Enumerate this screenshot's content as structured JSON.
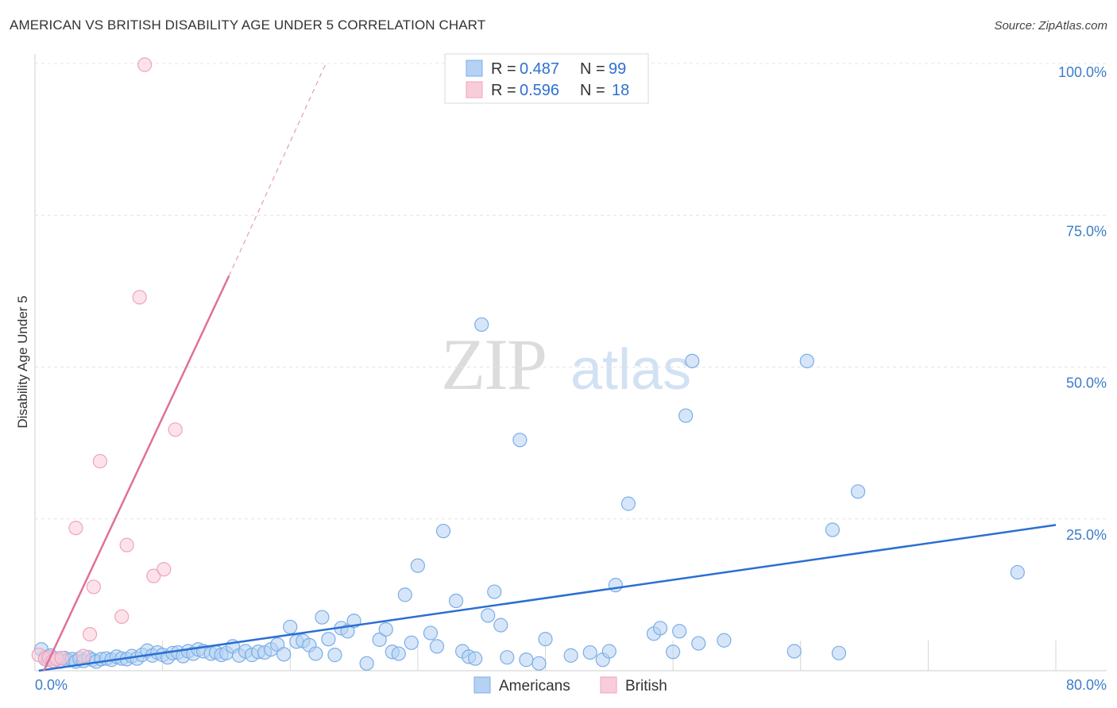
{
  "title": "AMERICAN VS BRITISH DISABILITY AGE UNDER 5 CORRELATION CHART",
  "source": "Source: ZipAtlas.com",
  "watermark": {
    "zip": "ZIP",
    "atlas": "atlas"
  },
  "chart_data": {
    "type": "scatter",
    "title": "AMERICAN VS BRITISH DISABILITY AGE UNDER 5 CORRELATION CHART",
    "xlabel": "",
    "ylabel": "Disability Age Under 5",
    "xlim": [
      0,
      80
    ],
    "ylim": [
      0,
      100
    ],
    "x_tick_labels": {
      "min": "0.0%",
      "max": "80.0%"
    },
    "y_ticks": [
      {
        "value": 100,
        "label": "100.0%"
      },
      {
        "value": 75,
        "label": "75.0%"
      },
      {
        "value": 50,
        "label": "50.0%"
      },
      {
        "value": 25,
        "label": "25.0%"
      }
    ],
    "legend": {
      "position": "top-center",
      "items": [
        {
          "series": "Americans",
          "r_label": "R =",
          "r_value": "0.487",
          "n_label": "N =",
          "n_value": "99"
        },
        {
          "series": "British",
          "r_label": "R =",
          "r_value": "0.596",
          "n_label": "N =",
          "n_value": "18"
        }
      ]
    },
    "series": [
      {
        "name": "Americans",
        "color": "#7aaee8",
        "fill": "#b5d1f3",
        "line_color": "#2b6fd1",
        "trend": {
          "x0": 0.3,
          "y0": 0,
          "x1": 80,
          "y1": 24
        },
        "points": [
          [
            0.5,
            3.5
          ],
          [
            0.8,
            2.2
          ],
          [
            1.0,
            1.8
          ],
          [
            1.2,
            2.5
          ],
          [
            1.5,
            1.6
          ],
          [
            1.8,
            2.0
          ],
          [
            2.0,
            1.5
          ],
          [
            2.3,
            2.1
          ],
          [
            2.6,
            1.7
          ],
          [
            2.9,
            1.9
          ],
          [
            3.2,
            1.5
          ],
          [
            3.5,
            2.0
          ],
          [
            3.8,
            1.6
          ],
          [
            4.2,
            2.2
          ],
          [
            4.5,
            1.8
          ],
          [
            4.8,
            1.5
          ],
          [
            5.2,
            1.9
          ],
          [
            5.6,
            2.0
          ],
          [
            6.0,
            1.8
          ],
          [
            6.4,
            2.3
          ],
          [
            6.8,
            2.0
          ],
          [
            7.2,
            1.9
          ],
          [
            7.6,
            2.4
          ],
          [
            8.0,
            2.0
          ],
          [
            8.4,
            2.6
          ],
          [
            8.8,
            3.3
          ],
          [
            9.2,
            2.5
          ],
          [
            9.6,
            3.0
          ],
          [
            10.0,
            2.6
          ],
          [
            10.4,
            2.2
          ],
          [
            10.8,
            2.9
          ],
          [
            11.2,
            3.0
          ],
          [
            11.6,
            2.4
          ],
          [
            12.0,
            3.2
          ],
          [
            12.4,
            2.8
          ],
          [
            12.8,
            3.5
          ],
          [
            13.2,
            3.2
          ],
          [
            13.8,
            2.8
          ],
          [
            14.2,
            3.0
          ],
          [
            14.6,
            2.6
          ],
          [
            15.0,
            2.9
          ],
          [
            15.5,
            4.0
          ],
          [
            16.0,
            2.5
          ],
          [
            16.5,
            3.2
          ],
          [
            17.0,
            2.6
          ],
          [
            17.5,
            3.1
          ],
          [
            18.0,
            3.0
          ],
          [
            18.5,
            3.5
          ],
          [
            19.0,
            4.3
          ],
          [
            19.5,
            2.7
          ],
          [
            20.0,
            7.2
          ],
          [
            20.5,
            4.8
          ],
          [
            21.0,
            4.9
          ],
          [
            21.5,
            4.2
          ],
          [
            22.0,
            2.8
          ],
          [
            22.5,
            8.8
          ],
          [
            23.0,
            5.2
          ],
          [
            23.5,
            2.6
          ],
          [
            24.0,
            7.0
          ],
          [
            24.5,
            6.5
          ],
          [
            25.0,
            8.2
          ],
          [
            26.0,
            1.2
          ],
          [
            27.0,
            5.1
          ],
          [
            27.5,
            6.8
          ],
          [
            28.0,
            3.1
          ],
          [
            28.5,
            2.8
          ],
          [
            29.0,
            12.5
          ],
          [
            29.5,
            4.6
          ],
          [
            30.0,
            17.3
          ],
          [
            31.0,
            6.2
          ],
          [
            31.5,
            4.0
          ],
          [
            32.0,
            23.0
          ],
          [
            33.0,
            11.5
          ],
          [
            33.5,
            3.2
          ],
          [
            34.0,
            2.3
          ],
          [
            34.5,
            2.0
          ],
          [
            35.0,
            57.0
          ],
          [
            35.5,
            9.1
          ],
          [
            36.0,
            13.0
          ],
          [
            36.5,
            7.5
          ],
          [
            37.0,
            2.2
          ],
          [
            38.0,
            38.0
          ],
          [
            38.5,
            1.8
          ],
          [
            39.5,
            1.2
          ],
          [
            40.0,
            5.2
          ],
          [
            42.0,
            2.5
          ],
          [
            43.5,
            3.0
          ],
          [
            44.5,
            1.8
          ],
          [
            45.0,
            3.2
          ],
          [
            45.5,
            14.1
          ],
          [
            46.5,
            27.5
          ],
          [
            48.5,
            6.1
          ],
          [
            49.0,
            7.0
          ],
          [
            50.0,
            3.1
          ],
          [
            50.5,
            6.5
          ],
          [
            51.0,
            42.0
          ],
          [
            51.5,
            51.0
          ],
          [
            52.0,
            4.5
          ],
          [
            54.0,
            5.0
          ]
        ],
        "extra_points": [
          [
            59.5,
            3.2
          ],
          [
            60.5,
            51.0
          ],
          [
            62.5,
            23.2
          ],
          [
            63.0,
            2.9
          ],
          [
            64.5,
            29.5
          ],
          [
            77.0,
            16.2
          ]
        ]
      },
      {
        "name": "British",
        "color": "#f0a3bc",
        "fill": "#f9ccd9",
        "line_color": "#e07099",
        "trend": {
          "x0": 0.7,
          "y0": 0,
          "x1": 15.2,
          "y1": 65,
          "dash_x1": 22.8,
          "dash_y1": 100
        },
        "points": [
          [
            0.3,
            2.6
          ],
          [
            0.8,
            1.9
          ],
          [
            1.1,
            2.2
          ],
          [
            1.4,
            1.6
          ],
          [
            1.7,
            1.9
          ],
          [
            2.1,
            2.1
          ],
          [
            3.2,
            23.5
          ],
          [
            4.3,
            6.0
          ],
          [
            4.6,
            13.8
          ],
          [
            5.1,
            34.5
          ],
          [
            6.8,
            8.9
          ],
          [
            7.2,
            20.7
          ],
          [
            8.2,
            61.5
          ],
          [
            8.6,
            99.8
          ],
          [
            9.3,
            15.6
          ],
          [
            10.1,
            16.7
          ],
          [
            11.0,
            39.7
          ],
          [
            3.8,
            2.4
          ]
        ]
      }
    ]
  },
  "bottom_legend": [
    {
      "label": "Americans"
    },
    {
      "label": "British"
    }
  ]
}
